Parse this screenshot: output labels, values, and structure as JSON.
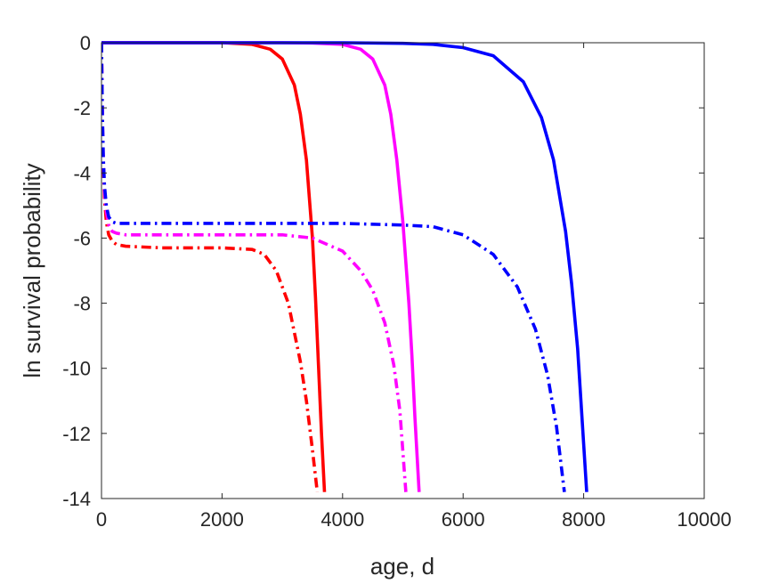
{
  "chart_data": {
    "type": "line",
    "title": "",
    "xlabel": "age, d",
    "ylabel": "ln survival probability",
    "xlim": [
      0,
      10000
    ],
    "ylim": [
      -14,
      0
    ],
    "xticks": [
      0,
      2000,
      4000,
      6000,
      8000,
      10000
    ],
    "yticks": [
      0,
      -2,
      -4,
      -6,
      -8,
      -10,
      -12,
      -14
    ],
    "xtick_labels": [
      "0",
      "2000",
      "4000",
      "6000",
      "8000",
      "10000"
    ],
    "ytick_labels": [
      "0",
      "-2",
      "-4",
      "-6",
      "-8",
      "-10",
      "-12",
      "-14"
    ],
    "grid": false,
    "series": [
      {
        "color": "#ff0000",
        "style": "solid",
        "x": [
          0,
          500,
          1000,
          1500,
          2000,
          2500,
          2800,
          3000,
          3200,
          3300,
          3400,
          3500,
          3550,
          3600,
          3650,
          3700
        ],
        "y": [
          0,
          0,
          0,
          0,
          0,
          -0.05,
          -0.2,
          -0.5,
          -1.3,
          -2.2,
          -3.6,
          -6.0,
          -7.8,
          -9.9,
          -12.0,
          -13.8
        ]
      },
      {
        "color": "#ff00ff",
        "style": "solid",
        "x": [
          0,
          1000,
          2000,
          3000,
          3500,
          4000,
          4300,
          4500,
          4700,
          4800,
          4900,
          5000,
          5100,
          5150,
          5200,
          5270
        ],
        "y": [
          0,
          0,
          0,
          0,
          -0.01,
          -0.05,
          -0.2,
          -0.5,
          -1.3,
          -2.2,
          -3.6,
          -5.5,
          -8.0,
          -9.6,
          -11.5,
          -13.8
        ]
      },
      {
        "color": "#0000ff",
        "style": "solid",
        "x": [
          0,
          1000,
          2000,
          3000,
          4000,
          5000,
          5500,
          6000,
          6500,
          7000,
          7300,
          7500,
          7700,
          7800,
          7900,
          8050
        ],
        "y": [
          0,
          0,
          0,
          0,
          0,
          -0.02,
          -0.05,
          -0.15,
          -0.4,
          -1.2,
          -2.3,
          -3.6,
          -5.8,
          -7.4,
          -9.4,
          -13.8
        ]
      },
      {
        "color": "#ff0000",
        "style": "dashdot",
        "x": [
          0,
          15,
          30,
          50,
          80,
          120,
          180,
          250,
          400,
          1000,
          2000,
          2500,
          2700,
          2900,
          3100,
          3300,
          3400,
          3500,
          3580
        ],
        "y": [
          0,
          -2.4,
          -3.8,
          -4.8,
          -5.5,
          -5.9,
          -6.1,
          -6.2,
          -6.25,
          -6.3,
          -6.3,
          -6.35,
          -6.5,
          -7.0,
          -8.0,
          -9.8,
          -11.0,
          -12.5,
          -13.8
        ]
      },
      {
        "color": "#ff00ff",
        "style": "dashdot",
        "x": [
          0,
          15,
          30,
          50,
          80,
          120,
          180,
          250,
          400,
          1000,
          2000,
          3000,
          3500,
          4000,
          4300,
          4500,
          4700,
          4850,
          4950,
          5050
        ],
        "y": [
          0,
          -2.3,
          -3.6,
          -4.6,
          -5.2,
          -5.6,
          -5.8,
          -5.85,
          -5.9,
          -5.9,
          -5.9,
          -5.9,
          -6.0,
          -6.4,
          -7.0,
          -7.6,
          -8.6,
          -9.9,
          -11.3,
          -13.8
        ]
      },
      {
        "color": "#0000ff",
        "style": "dashdot",
        "x": [
          0,
          15,
          30,
          50,
          80,
          120,
          180,
          250,
          400,
          1000,
          2000,
          3000,
          4000,
          5000,
          5500,
          6000,
          6500,
          6900,
          7200,
          7400,
          7550,
          7680
        ],
        "y": [
          0,
          -2.2,
          -3.5,
          -4.4,
          -5.0,
          -5.35,
          -5.5,
          -5.55,
          -5.55,
          -5.55,
          -5.55,
          -5.55,
          -5.55,
          -5.6,
          -5.65,
          -5.9,
          -6.5,
          -7.5,
          -8.8,
          -10.2,
          -11.8,
          -13.8
        ]
      }
    ]
  }
}
